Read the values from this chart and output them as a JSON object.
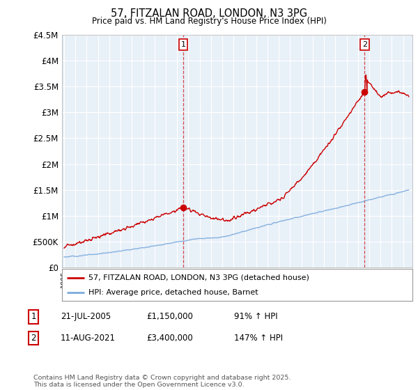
{
  "title": "57, FITZALAN ROAD, LONDON, N3 3PG",
  "subtitle": "Price paid vs. HM Land Registry's House Price Index (HPI)",
  "legend_line1": "57, FITZALAN ROAD, LONDON, N3 3PG (detached house)",
  "legend_line2": "HPI: Average price, detached house, Barnet",
  "sale1_label": "1",
  "sale1_date": "21-JUL-2005",
  "sale1_price": "£1,150,000",
  "sale1_hpi": "91% ↑ HPI",
  "sale2_label": "2",
  "sale2_date": "11-AUG-2021",
  "sale2_price": "£3,400,000",
  "sale2_hpi": "147% ↑ HPI",
  "footnote": "Contains HM Land Registry data © Crown copyright and database right 2025.\nThis data is licensed under the Open Government Licence v3.0.",
  "red_color": "#cc0000",
  "blue_color": "#7aaadd",
  "chart_bg": "#e8f0f8",
  "background_color": "#ffffff",
  "grid_color": "#ffffff",
  "ylim": [
    0,
    4500000
  ],
  "yticks": [
    0,
    500000,
    1000000,
    1500000,
    2000000,
    2500000,
    3000000,
    3500000,
    4000000,
    4500000
  ],
  "ytick_labels": [
    "£0",
    "£500K",
    "£1M",
    "£1.5M",
    "£2M",
    "£2.5M",
    "£3M",
    "£3.5M",
    "£4M",
    "£4.5M"
  ],
  "sale1_year": 2005.55,
  "sale1_value": 1150000,
  "sale2_year": 2021.6,
  "sale2_value": 3400000,
  "xmin": 1994.8,
  "xmax": 2025.8
}
